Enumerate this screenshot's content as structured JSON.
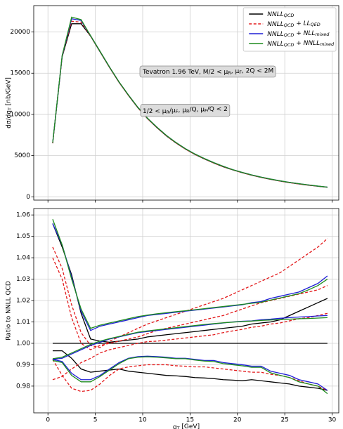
{
  "chart_data": [
    {
      "type": "line",
      "ylabel": "dσ/dq_{T} [nb/GeV]",
      "annotations": [
        "Tevatron 1.96 TeV, M/2 < μ_{R}, μ_{F}, 2Q < 2M",
        "1/2 < μ_{R}/μ_{F}, μ_{R}/Q, μ_{F}/Q < 2"
      ],
      "x": [
        0.5,
        1.5,
        2.5,
        3.5,
        4.5,
        5.5,
        6.5,
        7.5,
        8.5,
        9.5,
        10.5,
        11.5,
        12.5,
        13.5,
        14.5,
        15.5,
        16.5,
        17.5,
        18.5,
        19.5,
        20.5,
        21.5,
        22.5,
        23.5,
        24.5,
        25.5,
        26.5,
        27.5,
        28.5,
        29.5
      ],
      "xlim": [
        -1.5,
        30.7
      ],
      "xticks": [
        0,
        5,
        10,
        15,
        20,
        25,
        30
      ],
      "ylim": [
        -400,
        23200
      ],
      "yticks": [
        0,
        5000,
        10000,
        15000,
        20000
      ],
      "grid": true,
      "legend": "upper right",
      "series": [
        {
          "name": "NNLL_{QCD}",
          "color": "#000000",
          "linestyle": "solid",
          "values": [
            6500,
            17000,
            21000,
            21000,
            19500,
            17600,
            15700,
            13900,
            12300,
            10800,
            9500,
            8400,
            7400,
            6550,
            5800,
            5150,
            4600,
            4100,
            3650,
            3270,
            2930,
            2630,
            2360,
            2120,
            1910,
            1720,
            1560,
            1410,
            1280,
            1160
          ]
        },
        {
          "name": "NNLL_{QCD} + LL_{QED}",
          "color": "#e31a1c",
          "linestyle": "dashed",
          "values": [
            6500,
            17050,
            21300,
            21200,
            19500,
            17600,
            15700,
            13900,
            12300,
            10800,
            9500,
            8400,
            7400,
            6550,
            5800,
            5150,
            4600,
            4100,
            3650,
            3270,
            2930,
            2630,
            2360,
            2120,
            1910,
            1720,
            1560,
            1410,
            1280,
            1160
          ]
        },
        {
          "name": "NNLL_{QCD} + NLL_{mixed}",
          "color": "#1f1fd6",
          "linestyle": "solid",
          "values": [
            6550,
            17100,
            21600,
            21400,
            19550,
            17650,
            15750,
            13950,
            12350,
            10850,
            9550,
            8450,
            7450,
            6600,
            5850,
            5200,
            4650,
            4150,
            3700,
            3300,
            2960,
            2660,
            2390,
            2150,
            1940,
            1750,
            1590,
            1440,
            1300,
            1180
          ]
        },
        {
          "name": "NNLL_{QCD} + NNLL_{mixed}",
          "color": "#1e8c1e",
          "linestyle": "solid",
          "values": [
            6550,
            17150,
            21800,
            21500,
            19550,
            17650,
            15750,
            13950,
            12350,
            10850,
            9550,
            8450,
            7450,
            6600,
            5850,
            5200,
            4650,
            4150,
            3700,
            3300,
            2960,
            2660,
            2390,
            2150,
            1940,
            1750,
            1590,
            1440,
            1300,
            1180
          ]
        }
      ]
    },
    {
      "type": "ratio",
      "xlabel": "q_{T} [GeV]",
      "ylabel": "Ratio to NNLL QCD",
      "x": [
        0.5,
        1.5,
        2.5,
        3.5,
        4.5,
        5.5,
        6.5,
        7.5,
        8.5,
        9.5,
        10.5,
        11.5,
        12.5,
        13.5,
        14.5,
        15.5,
        16.5,
        17.5,
        18.5,
        19.5,
        20.5,
        21.5,
        22.5,
        23.5,
        24.5,
        25.5,
        26.5,
        27.5,
        28.5,
        29.5
      ],
      "xlim": [
        -1.5,
        30.7
      ],
      "xticks": [
        0,
        5,
        10,
        15,
        20,
        25,
        30
      ],
      "ylim": [
        0.9675,
        1.063
      ],
      "yticks": [
        0.98,
        0.99,
        {
          "value": 1,
          "label": "1.00"
        },
        1.01,
        1.02,
        1.03,
        1.04,
        1.05,
        1.06
      ],
      "grid": true,
      "series": [
        {
          "color": "#000000",
          "linestyle": "solid",
          "curves": [
            [
              1,
              1,
              1,
              1,
              1,
              1,
              1,
              1,
              1,
              1,
              1,
              1,
              1,
              1,
              1,
              1,
              1,
              1,
              1,
              1,
              1,
              1,
              1,
              1,
              1,
              1,
              1,
              1,
              1,
              1
            ],
            [
              1.056,
              1.045,
              1.032,
              1.014,
              1.002,
              1.001,
              1.0005,
              1.001,
              1.0015,
              1.002,
              1.003,
              1.0035,
              1.004,
              1.0045,
              1.005,
              1.0055,
              1.006,
              1.0065,
              1.007,
              1.0075,
              1.008,
              1.009,
              1.0095,
              1.01,
              1.011,
              1.013,
              1.015,
              1.017,
              1.019,
              1.021
            ],
            [
              0.9965,
              0.9965,
              0.993,
              0.988,
              0.9865,
              0.987,
              0.9875,
              0.988,
              0.987,
              0.9865,
              0.986,
              0.9855,
              0.985,
              0.9848,
              0.9845,
              0.984,
              0.9838,
              0.9835,
              0.983,
              0.9828,
              0.9825,
              0.983,
              0.9825,
              0.982,
              0.9815,
              0.981,
              0.98,
              0.9795,
              0.979,
              0.978
            ]
          ]
        },
        {
          "color": "#e31a1c",
          "linestyle": "dashed",
          "curves": [
            [
              1.045,
              1.035,
              1.018,
              1.005,
              0.999,
              0.998,
              1.001,
              1.003,
              1.005,
              1.007,
              1.009,
              1.0105,
              1.012,
              1.0135,
              1.015,
              1.0165,
              1.018,
              1.0195,
              1.021,
              1.023,
              1.025,
              1.027,
              1.029,
              1.031,
              1.033,
              1.036,
              1.039,
              1.042,
              1.045,
              1.049
            ],
            [
              1.04,
              1.03,
              1.012,
              1.0,
              0.997,
              0.999,
              1.0,
              1.001,
              1.002,
              1.003,
              1.0045,
              1.006,
              1.007,
              1.008,
              1.009,
              1.01,
              1.011,
              1.012,
              1.013,
              1.0145,
              1.016,
              1.0175,
              1.019,
              1.02,
              1.021,
              1.022,
              1.023,
              1.024,
              1.025,
              1.027
            ],
            [
              0.983,
              0.9845,
              0.988,
              0.991,
              0.993,
              0.9955,
              0.997,
              0.998,
              0.999,
              1.0,
              1.0008,
              1.001,
              1.0015,
              1.002,
              1.0025,
              1.003,
              1.0035,
              1.004,
              1.005,
              1.0058,
              1.0065,
              1.0075,
              1.008,
              1.009,
              1.0095,
              1.0105,
              1.0115,
              1.012,
              1.013,
              1.014
            ],
            [
              0.9925,
              0.985,
              0.979,
              0.9775,
              0.978,
              0.981,
              0.985,
              0.988,
              0.989,
              0.9895,
              0.99,
              0.99,
              0.99,
              0.9895,
              0.9893,
              0.989,
              0.989,
              0.9885,
              0.988,
              0.9875,
              0.987,
              0.9865,
              0.9865,
              0.9855,
              0.985,
              0.984,
              0.9825,
              0.981,
              0.98,
              0.978
            ]
          ]
        },
        {
          "color": "#1f1fd6",
          "linestyle": "solid",
          "curves": [
            [
              1.056,
              1.046,
              1.031,
              1.015,
              1.006,
              1.008,
              1.009,
              1.01,
              1.011,
              1.012,
              1.013,
              1.0135,
              1.014,
              1.0145,
              1.015,
              1.0155,
              1.016,
              1.0165,
              1.017,
              1.0175,
              1.018,
              1.019,
              1.0195,
              1.021,
              1.022,
              1.023,
              1.024,
              1.026,
              1.028,
              1.0315
            ],
            [
              0.9925,
              0.993,
              0.995,
              0.997,
              0.999,
              1.0005,
              1.002,
              1.003,
              1.004,
              1.005,
              1.0055,
              1.006,
              1.0065,
              1.007,
              1.0075,
              1.008,
              1.0085,
              1.009,
              1.0095,
              1.01,
              1.0103,
              1.0105,
              1.011,
              1.0113,
              1.0117,
              1.012,
              1.0123,
              1.0125,
              1.0128,
              1.013
            ],
            [
              0.9925,
              0.9915,
              0.986,
              0.983,
              0.983,
              0.985,
              0.988,
              0.991,
              0.993,
              0.9938,
              0.994,
              0.9938,
              0.9935,
              0.993,
              0.993,
              0.9925,
              0.992,
              0.992,
              0.991,
              0.9905,
              0.99,
              0.9893,
              0.9893,
              0.987,
              0.986,
              0.985,
              0.983,
              0.982,
              0.981,
              0.978
            ]
          ]
        },
        {
          "color": "#1e8c1e",
          "linestyle": "solid",
          "curves": [
            [
              1.058,
              1.046,
              1.03,
              1.016,
              1.007,
              1.0085,
              1.0095,
              1.0105,
              1.0115,
              1.0125,
              1.0132,
              1.0138,
              1.0143,
              1.0148,
              1.0152,
              1.0157,
              1.0162,
              1.0167,
              1.0172,
              1.0177,
              1.0182,
              1.0187,
              1.0192,
              1.0202,
              1.0212,
              1.0222,
              1.0232,
              1.025,
              1.027,
              1.03
            ],
            [
              0.9928,
              0.9935,
              0.9955,
              0.9975,
              0.9995,
              1.001,
              1.0022,
              1.0032,
              1.0042,
              1.0052,
              1.0058,
              1.0063,
              1.0068,
              1.0073,
              1.0078,
              1.0083,
              1.0088,
              1.0092,
              1.0096,
              1.0099,
              1.0102,
              1.0104,
              1.0107,
              1.0109,
              1.0111,
              1.0113,
              1.0115,
              1.0116,
              1.0118,
              1.012
            ],
            [
              0.992,
              0.991,
              0.985,
              0.982,
              0.982,
              0.9845,
              0.9875,
              0.9905,
              0.9928,
              0.9935,
              0.9937,
              0.9935,
              0.9932,
              0.9928,
              0.9928,
              0.9922,
              0.9917,
              0.9915,
              0.9905,
              0.99,
              0.9895,
              0.9888,
              0.9888,
              0.9862,
              0.985,
              0.984,
              0.982,
              0.981,
              0.98,
              0.9765
            ]
          ]
        }
      ]
    }
  ]
}
